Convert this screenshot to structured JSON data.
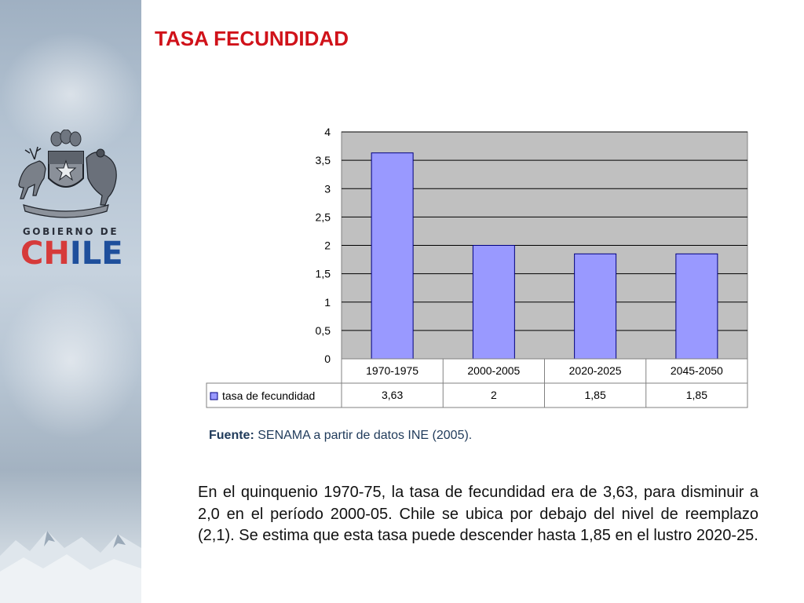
{
  "title": "TASA FECUNDIDAD",
  "logo": {
    "line1": "GOBIERNO DE",
    "word_part1": "CH",
    "word_part2": "ILE",
    "emblem": "chile-coat-of-arms"
  },
  "chart_data": {
    "type": "bar",
    "categories": [
      "1970-1975",
      "2000-2005",
      "2020-2025",
      "2045-2050"
    ],
    "series": [
      {
        "name": "tasa de fecundidad",
        "values": [
          3.63,
          2,
          1.85,
          1.85
        ],
        "color": "#9999ff"
      }
    ],
    "table_values": [
      "3,63",
      "2",
      "1,85",
      "1,85"
    ],
    "yticks": [
      "0",
      "0,5",
      "1",
      "1,5",
      "2",
      "2,5",
      "3",
      "3,5",
      "4"
    ],
    "ylim": [
      0,
      4
    ],
    "grid": true,
    "legend": "data-table",
    "plot_background": "#c0c0c0",
    "title": "",
    "xlabel": "",
    "ylabel": ""
  },
  "source": {
    "label": "Fuente:",
    "text": " SENAMA a partir de datos INE (2005)."
  },
  "body_text": "En el quinquenio 1970-75, la tasa de fecundidad era de 3,63, para disminuir a 2,0 en el período 2000-05. Chile se ubica por debajo del nivel de reemplazo (2,1). Se estima que esta tasa puede descender hasta 1,85 en el lustro 2020-25.",
  "colors": {
    "title": "#d0121a",
    "chile_red": "#d63a3a",
    "chile_blue": "#1e4f9c"
  }
}
